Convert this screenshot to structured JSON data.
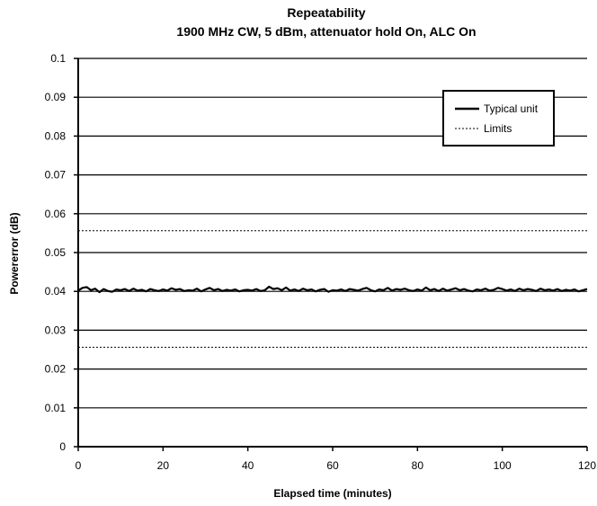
{
  "chart_data": {
    "type": "line",
    "title": "Repeatability",
    "subtitle": "1900 MHz CW, 5 dBm, attenuator hold On, ALC On",
    "xlabel": "Elapsed time (minutes)",
    "ylabel": "Powererror (dB)",
    "xlim": [
      0,
      120
    ],
    "ylim": [
      0,
      0.1
    ],
    "x_ticks": [
      0,
      20,
      40,
      60,
      80,
      100,
      120
    ],
    "y_ticks": [
      0,
      0.01,
      0.02,
      0.03,
      0.04,
      0.05,
      0.06,
      0.07,
      0.08,
      0.09,
      0.1
    ],
    "x_tick_labels": [
      "0",
      "20",
      "40",
      "60",
      "80",
      "100",
      "120"
    ],
    "y_tick_labels": [
      "0",
      "0.01",
      "0.02",
      "0.03",
      "0.04",
      "0.05",
      "0.06",
      "0.07",
      "0.08",
      "0.09",
      "0.1"
    ],
    "grid": true,
    "legend_position": "top-right",
    "series": [
      {
        "name": "Typical unit",
        "style": "solid",
        "color": "#000000",
        "x": [
          0,
          1,
          2,
          3,
          4,
          5,
          6,
          7,
          8,
          9,
          10,
          11,
          12,
          13,
          14,
          15,
          16,
          17,
          18,
          19,
          20,
          21,
          22,
          23,
          24,
          25,
          26,
          27,
          28,
          29,
          30,
          31,
          32,
          33,
          34,
          35,
          36,
          37,
          38,
          39,
          40,
          41,
          42,
          43,
          44,
          45,
          46,
          47,
          48,
          49,
          50,
          51,
          52,
          53,
          54,
          55,
          56,
          57,
          58,
          59,
          60,
          61,
          62,
          63,
          64,
          65,
          66,
          67,
          68,
          69,
          70,
          71,
          72,
          73,
          74,
          75,
          76,
          77,
          78,
          79,
          80,
          81,
          82,
          83,
          84,
          85,
          86,
          87,
          88,
          89,
          90,
          91,
          92,
          93,
          94,
          95,
          96,
          97,
          98,
          99,
          100,
          101,
          102,
          103,
          104,
          105,
          106,
          107,
          108,
          109,
          110,
          111,
          112,
          113,
          114,
          115,
          116,
          117,
          118,
          119,
          120
        ],
        "values": [
          0.0402,
          0.0409,
          0.0411,
          0.0403,
          0.0407,
          0.0398,
          0.0406,
          0.0401,
          0.0399,
          0.0405,
          0.0403,
          0.0406,
          0.0401,
          0.0407,
          0.0402,
          0.0404,
          0.04,
          0.0406,
          0.0403,
          0.0401,
          0.0405,
          0.0402,
          0.0408,
          0.0404,
          0.0406,
          0.0401,
          0.0403,
          0.0402,
          0.0407,
          0.04,
          0.0405,
          0.0409,
          0.0403,
          0.0406,
          0.0401,
          0.0404,
          0.0402,
          0.0405,
          0.04,
          0.0403,
          0.0404,
          0.0402,
          0.0406,
          0.0401,
          0.0403,
          0.0412,
          0.0406,
          0.0408,
          0.0403,
          0.041,
          0.0402,
          0.0405,
          0.0401,
          0.0407,
          0.0403,
          0.0405,
          0.04,
          0.0404,
          0.0406,
          0.0399,
          0.0403,
          0.0402,
          0.0405,
          0.0401,
          0.0406,
          0.0404,
          0.0402,
          0.0406,
          0.0409,
          0.0403,
          0.04,
          0.0405,
          0.0403,
          0.0409,
          0.0402,
          0.0406,
          0.0404,
          0.0407,
          0.0403,
          0.0401,
          0.0405,
          0.0402,
          0.041,
          0.0403,
          0.0406,
          0.0401,
          0.0407,
          0.0402,
          0.0405,
          0.0408,
          0.0403,
          0.0406,
          0.0402,
          0.04,
          0.0405,
          0.0403,
          0.0407,
          0.0402,
          0.0404,
          0.0409,
          0.0406,
          0.0402,
          0.0405,
          0.0401,
          0.0407,
          0.0403,
          0.0406,
          0.0404,
          0.0401,
          0.0407,
          0.0403,
          0.0405,
          0.0402,
          0.0406,
          0.0401,
          0.0404,
          0.0402,
          0.0405,
          0.04,
          0.0403,
          0.0406
        ]
      },
      {
        "name": "Limits",
        "style": "dotted",
        "color": "#000000",
        "segments": [
          {
            "x": [
              0,
              120
            ],
            "values": [
              0.0556,
              0.0556
            ]
          },
          {
            "x": [
              0,
              120
            ],
            "values": [
              0.0256,
              0.0256
            ]
          }
        ]
      }
    ]
  }
}
